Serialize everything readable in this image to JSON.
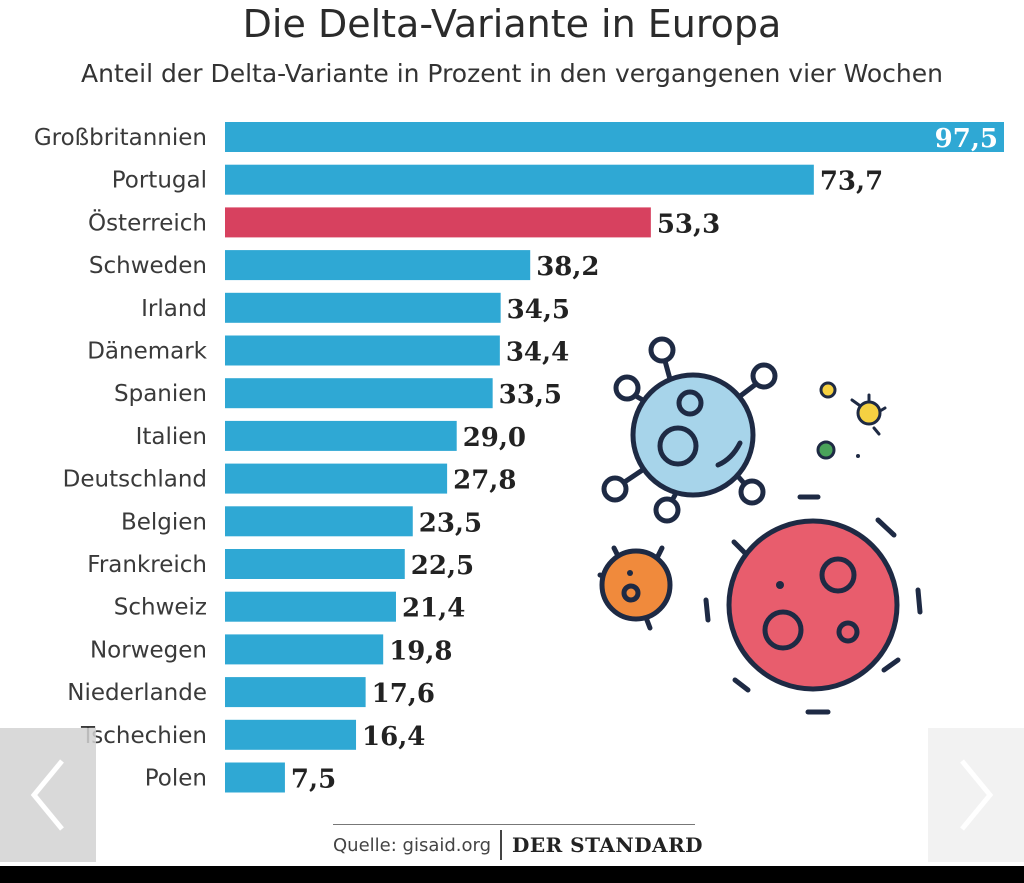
{
  "colors": {
    "bar": "#2fa8d4",
    "highlight": "#d7415f",
    "label_inside": "#ffffff",
    "label": "#222222",
    "category": "#3a3a3a"
  },
  "chart_data": {
    "type": "bar",
    "orientation": "horizontal",
    "title": "Die Delta-Variante in Europa",
    "subtitle": "Anteil der Delta-Variante in Prozent in den vergangenen vier Wochen",
    "categories": [
      "Großbritannien",
      "Portugal",
      "Österreich",
      "Schweden",
      "Irland",
      "Dänemark",
      "Spanien",
      "Italien",
      "Deutschland",
      "Belgien",
      "Frankreich",
      "Schweiz",
      "Norwegen",
      "Niederlande",
      "Tschechien",
      "Polen"
    ],
    "values": [
      97.5,
      73.7,
      53.3,
      38.2,
      34.5,
      34.4,
      33.5,
      29.0,
      27.8,
      23.5,
      22.5,
      21.4,
      19.8,
      17.6,
      16.4,
      7.5
    ],
    "value_labels": [
      "97,5",
      "73,7",
      "53,3",
      "38,2",
      "34,5",
      "34,4",
      "33,5",
      "29,0",
      "27,8",
      "23,5",
      "22,5",
      "21,4",
      "19,8",
      "17,6",
      "16,4",
      "7,5"
    ],
    "highlight_category": "Österreich",
    "xlim": [
      0,
      97.5
    ],
    "grid": false,
    "legend": "none"
  },
  "footer": {
    "source": "Quelle: gisaid.org",
    "brand": "DER STANDARD"
  },
  "nav": {
    "prev_icon": "chevron-left-icon",
    "next_icon": "chevron-right-icon"
  }
}
